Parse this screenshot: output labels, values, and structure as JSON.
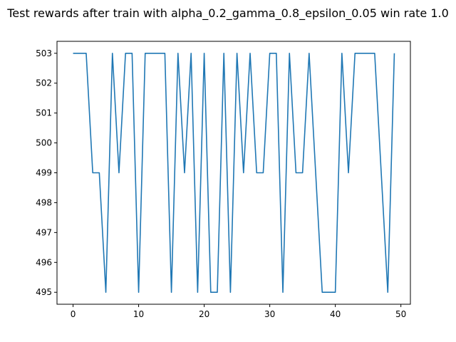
{
  "chart_data": {
    "type": "line",
    "title": "Test rewards after train with alpha_0.2_gamma_0.8_epsilon_0.05 win rate 1.0",
    "xlabel": "",
    "ylabel": "",
    "xlim": [
      -2.45,
      51.45
    ],
    "ylim": [
      494.6,
      503.4
    ],
    "xticks": [
      0,
      10,
      20,
      30,
      40,
      50
    ],
    "yticks": [
      495,
      496,
      497,
      498,
      499,
      500,
      501,
      502,
      503
    ],
    "grid": false,
    "legend": "none",
    "series": [
      {
        "color": "#1f77b4",
        "x": [
          0,
          1,
          2,
          3,
          4,
          5,
          6,
          7,
          8,
          9,
          10,
          11,
          12,
          13,
          14,
          15,
          16,
          17,
          18,
          19,
          20,
          21,
          22,
          23,
          24,
          25,
          26,
          27,
          28,
          29,
          30,
          31,
          32,
          33,
          34,
          35,
          36,
          37,
          38,
          39,
          40,
          41,
          42,
          43,
          44,
          45,
          46,
          47,
          48,
          49
        ],
        "y": [
          503,
          503,
          503,
          499,
          499,
          495,
          503,
          499,
          503,
          503,
          495,
          503,
          503,
          503,
          503,
          495,
          503,
          499,
          503,
          495,
          503,
          495,
          495,
          503,
          495,
          503,
          499,
          503,
          499,
          499,
          503,
          503,
          495,
          503,
          499,
          499,
          503,
          499,
          495,
          495,
          495,
          503,
          499,
          503,
          503,
          503,
          503,
          499,
          495,
          503
        ]
      }
    ]
  }
}
